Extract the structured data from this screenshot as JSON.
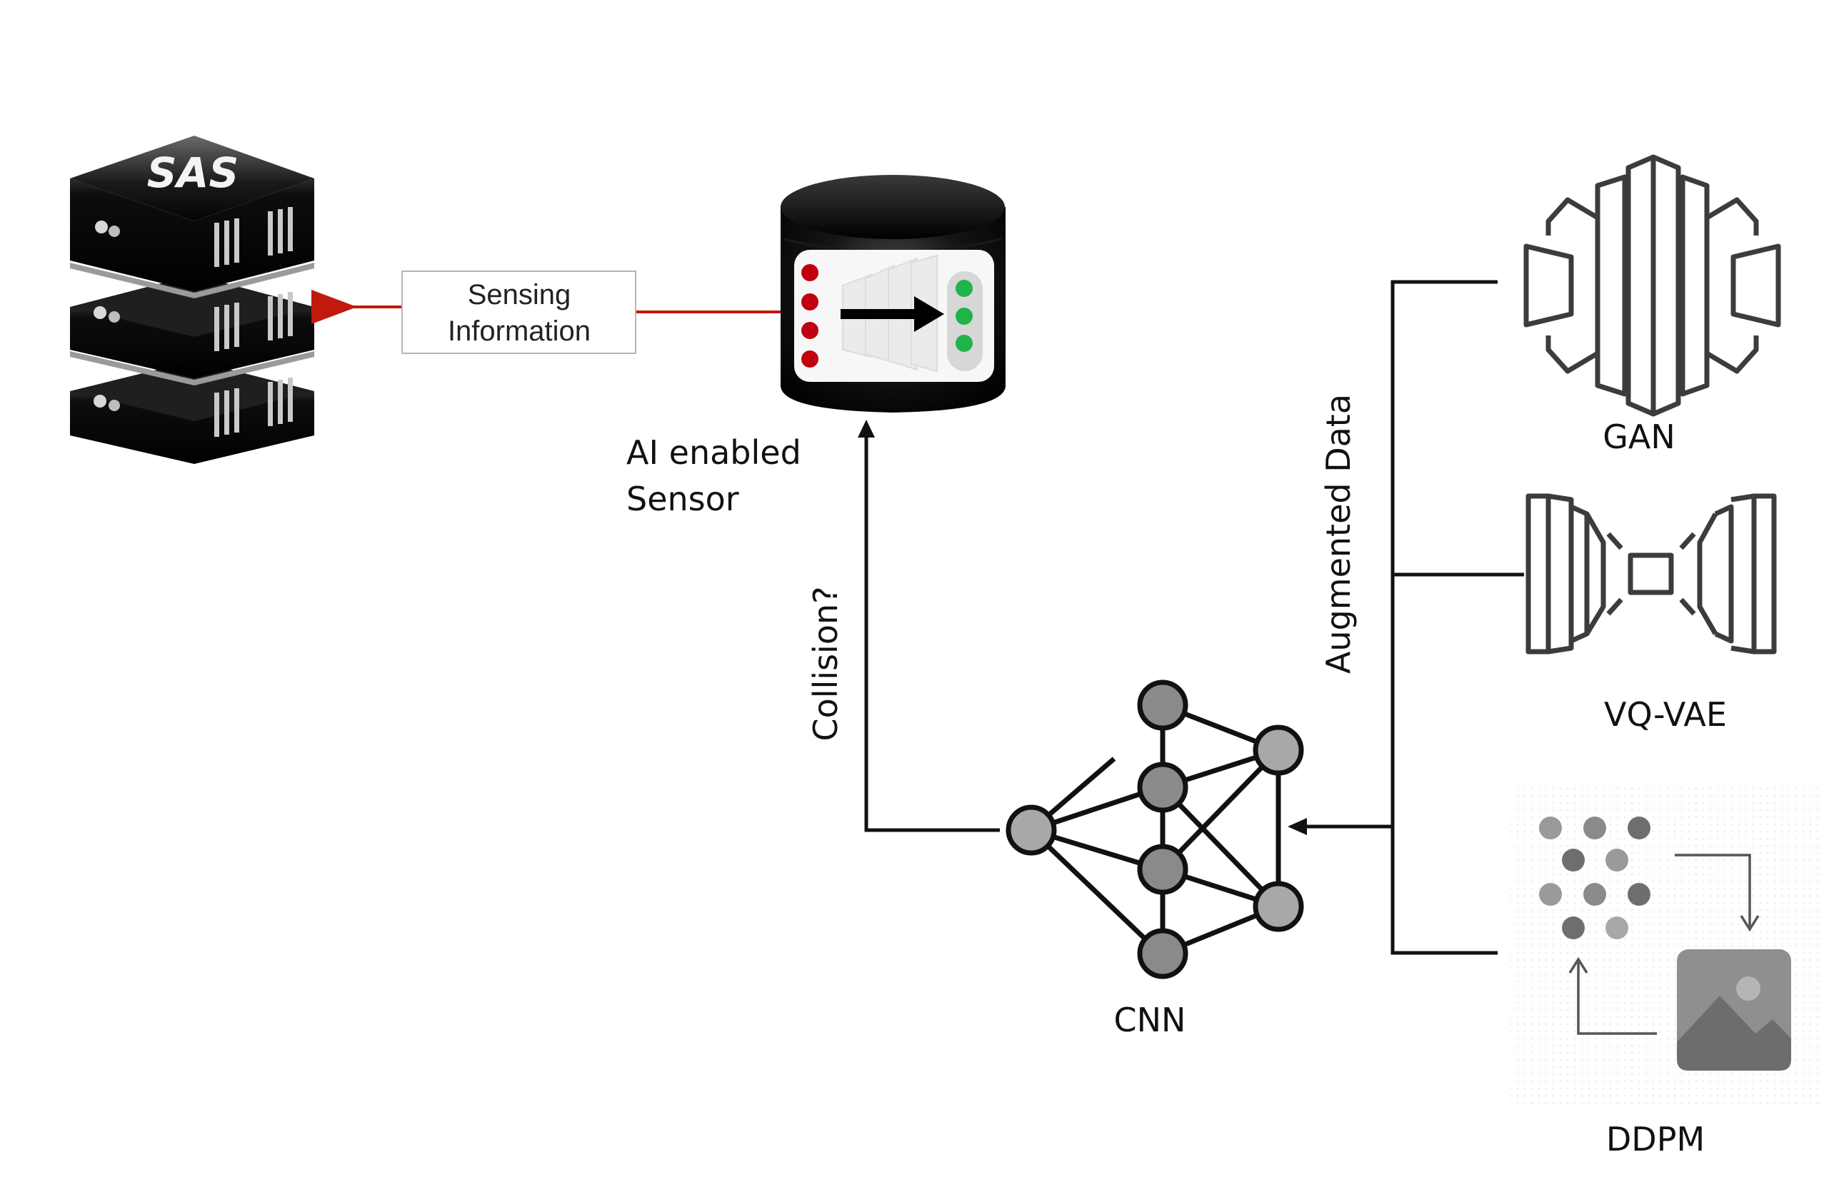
{
  "labels": {
    "sas": "SAS",
    "sensing_line1": "Sensing",
    "sensing_line2": "Information",
    "sensor_line1": "AI enabled",
    "sensor_line2": "Sensor",
    "collision": "Collision?",
    "augmented": "Augmented Data",
    "cnn": "CNN",
    "gan": "GAN",
    "vqvae": "VQ-VAE",
    "ddpm": "DDPM"
  },
  "colors": {
    "line": "#111111",
    "sensing_arrow": "#c0190e",
    "led_red": "#c00010",
    "led_green": "#1fb34a",
    "node_fill": "#a8a8a8",
    "node_dark": "#8a8a8a",
    "server_dark": "#0c0c0c",
    "icon_stroke": "#3c3c3c"
  },
  "icons": [
    "server-stack-icon",
    "ai-sensor-icon",
    "neural-network-icon",
    "gan-icon",
    "vq-vae-icon",
    "ddpm-icon",
    "image-icon"
  ]
}
